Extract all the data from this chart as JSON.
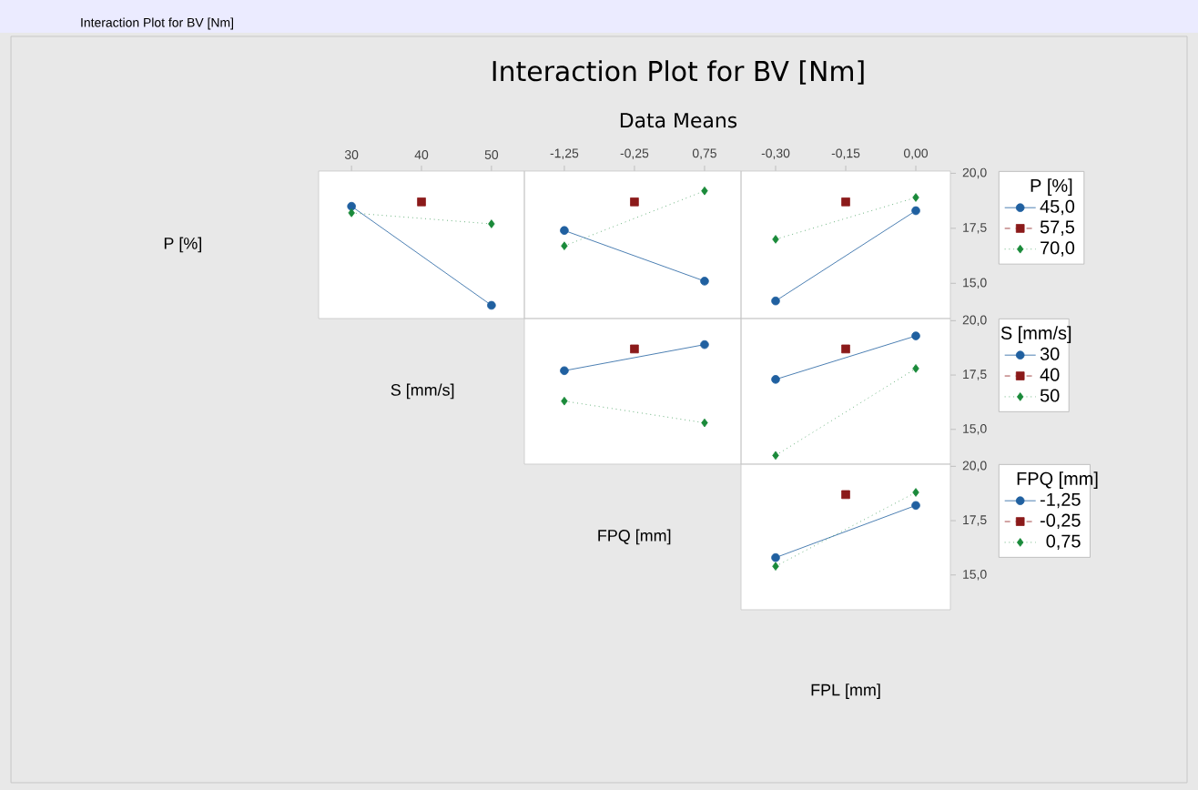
{
  "chart_data": [
    {
      "type": "line",
      "ylabel": "P [%]",
      "x": [
        30,
        40,
        50
      ],
      "xlim": [
        25.3,
        54.7
      ],
      "xticks": [
        30,
        40,
        50
      ],
      "ylim": [
        13.4,
        20.1
      ],
      "tick_labels": "x",
      "series": [
        {
          "color": "#2060a0",
          "marker": "circle",
          "line_style": "solid",
          "values": [
            18.5,
            null,
            14.0
          ]
        },
        {
          "color": "#8b1a1a",
          "marker": "square",
          "line_style": "dashed",
          "values": [
            null,
            18.7,
            null
          ]
        },
        {
          "color": "#1a8a3a",
          "marker": "diamond",
          "line_style": "dotted",
          "values": [
            18.2,
            null,
            17.7
          ]
        }
      ]
    },
    {
      "type": "line",
      "title": "Interaction Plot for BV [Nm]",
      "subtitle": "Data Means",
      "annotations": [
        "Interaction Plot for BV [Nm]"
      ],
      "x": [
        -1.25,
        -0.25,
        0.75
      ],
      "xlim": [
        -1.82,
        1.27
      ],
      "xticks": [
        {
          "value": -1.25,
          "label": "-1,25"
        },
        {
          "value": -0.25,
          "label": "-0,25"
        },
        {
          "value": 0.75,
          "label": "0,75"
        }
      ],
      "ylim": [
        13.4,
        20.1
      ],
      "tick_labels": "x",
      "series": [
        {
          "color": "#2060a0",
          "marker": "circle",
          "line_style": "solid",
          "values": [
            17.4,
            null,
            15.1
          ]
        },
        {
          "color": "#8b1a1a",
          "marker": "square",
          "line_style": "dashed",
          "values": [
            null,
            18.7,
            null
          ]
        },
        {
          "color": "#1a8a3a",
          "marker": "diamond",
          "line_style": "dotted",
          "values": [
            16.7,
            null,
            19.2
          ]
        }
      ]
    },
    {
      "type": "line",
      "x": [
        -0.3,
        -0.15,
        0.0
      ],
      "xlim": [
        -0.374,
        0.074
      ],
      "xticks": [
        {
          "value": -0.3,
          "label": "-0,30"
        },
        {
          "value": -0.15,
          "label": "-0,15"
        },
        {
          "value": 0.0,
          "label": "0,00"
        }
      ],
      "ylim": [
        13.4,
        20.1
      ],
      "yticks": [
        {
          "value": 15,
          "label": "15,0"
        },
        {
          "value": 17.5,
          "label": "17,5"
        },
        {
          "value": 20,
          "label": "20,0"
        }
      ],
      "legend": "right",
      "legend_title": "P [%]",
      "series": [
        {
          "name": "45,0",
          "color": "#2060a0",
          "marker": "circle",
          "line_style": "solid",
          "values": [
            14.2,
            null,
            18.3
          ]
        },
        {
          "name": "57,5",
          "color": "#8b1a1a",
          "marker": "square",
          "line_style": "dashed",
          "values": [
            null,
            18.7,
            null
          ]
        },
        {
          "name": "70,0",
          "color": "#1a8a3a",
          "marker": "diamond",
          "line_style": "dotted",
          "values": [
            17.0,
            null,
            18.9
          ]
        }
      ]
    },
    {
      "type": "line",
      "ylabel": "S [mm/s]",
      "x": [
        -1.25,
        -0.25,
        0.75
      ],
      "xlim": [
        -1.82,
        1.27
      ],
      "ylim": [
        13.4,
        20.1
      ],
      "tick_labels": false,
      "series": [
        {
          "color": "#2060a0",
          "marker": "circle",
          "line_style": "solid",
          "values": [
            17.7,
            null,
            18.9
          ]
        },
        {
          "color": "#8b1a1a",
          "marker": "square",
          "line_style": "dashed",
          "values": [
            null,
            18.7,
            null
          ]
        },
        {
          "color": "#1a8a3a",
          "marker": "diamond",
          "line_style": "dotted",
          "values": [
            16.3,
            null,
            15.3
          ]
        }
      ]
    },
    {
      "type": "line",
      "x": [
        -0.3,
        -0.15,
        0.0
      ],
      "xlim": [
        -0.374,
        0.074
      ],
      "ylim": [
        13.4,
        20.1
      ],
      "yticks": [
        {
          "value": 15,
          "label": "15,0"
        },
        {
          "value": 17.5,
          "label": "17,5"
        },
        {
          "value": 20,
          "label": "20,0"
        }
      ],
      "tick_labels": "y",
      "legend": "right",
      "legend_title": "S [mm/s]",
      "series": [
        {
          "name": "30",
          "color": "#2060a0",
          "marker": "circle",
          "line_style": "solid",
          "values": [
            17.3,
            null,
            19.3
          ]
        },
        {
          "name": "40",
          "color": "#8b1a1a",
          "marker": "square",
          "line_style": "dashed",
          "values": [
            null,
            18.7,
            null
          ]
        },
        {
          "name": "50",
          "color": "#1a8a3a",
          "marker": "diamond",
          "line_style": "dotted",
          "values": [
            13.8,
            null,
            17.8
          ]
        }
      ]
    },
    {
      "type": "line",
      "ylabel": "FPQ [mm]",
      "xlabel": "FPL [mm]",
      "x": [
        -0.3,
        -0.15,
        0.0
      ],
      "xlim": [
        -0.374,
        0.074
      ],
      "ylim": [
        13.4,
        20.1
      ],
      "yticks": [
        {
          "value": 15,
          "label": "15,0"
        },
        {
          "value": 17.5,
          "label": "17,5"
        },
        {
          "value": 20,
          "label": "20,0"
        }
      ],
      "tick_labels": "y",
      "legend": "right",
      "legend_title": "FPQ [mm]",
      "series": [
        {
          "name": "-1,25",
          "color": "#2060a0",
          "marker": "circle",
          "line_style": "solid",
          "values": [
            15.8,
            null,
            18.2
          ]
        },
        {
          "name": "-0,25",
          "color": "#8b1a1a",
          "marker": "square",
          "line_style": "dashed",
          "values": [
            null,
            18.7,
            null
          ]
        },
        {
          "name": "0,75",
          "color": "#1a8a3a",
          "marker": "diamond",
          "line_style": "dotted",
          "values": [
            15.4,
            null,
            18.8
          ]
        }
      ]
    }
  ]
}
